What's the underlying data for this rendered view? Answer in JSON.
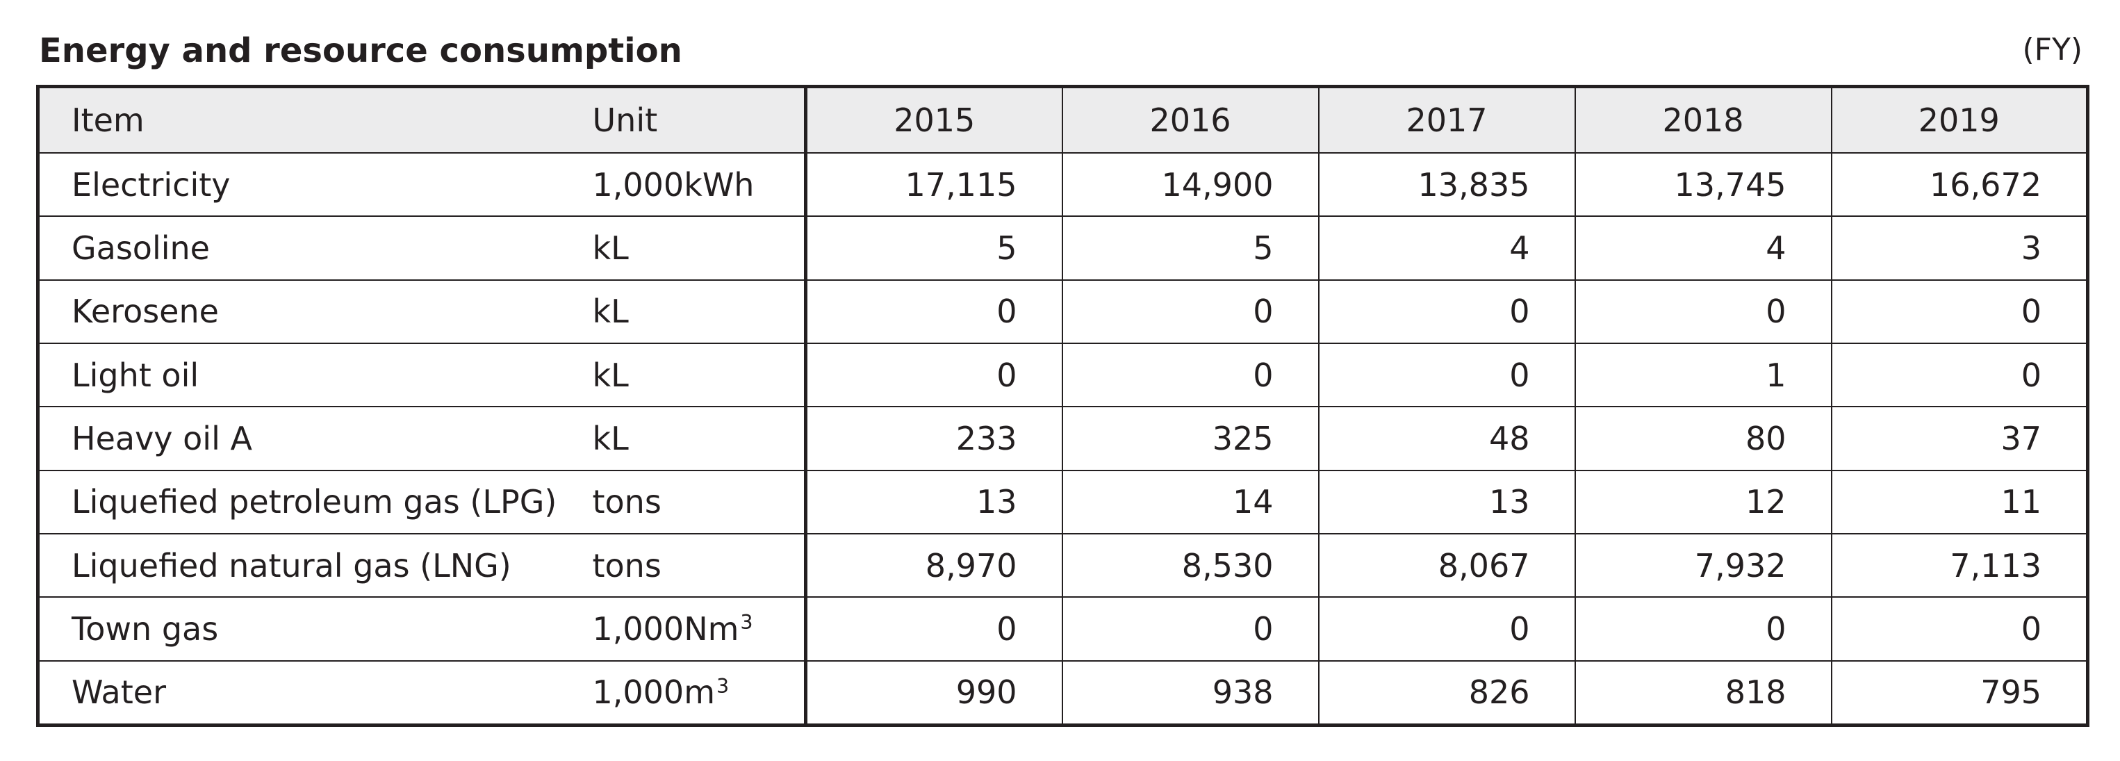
{
  "header": {
    "title": "Energy and resource consumption",
    "period": "(FY)"
  },
  "table": {
    "columns": {
      "item": "Item",
      "unit": "Unit",
      "years": [
        "2015",
        "2016",
        "2017",
        "2018",
        "2019"
      ]
    },
    "rows": [
      {
        "item": "Electricity",
        "unit": "1,000kWh",
        "unit_sup": "",
        "values": [
          "17,115",
          "14,900",
          "13,835",
          "13,745",
          "16,672"
        ]
      },
      {
        "item": "Gasoline",
        "unit": "kL",
        "unit_sup": "",
        "values": [
          "5",
          "5",
          "4",
          "4",
          "3"
        ]
      },
      {
        "item": "Kerosene",
        "unit": "kL",
        "unit_sup": "",
        "values": [
          "0",
          "0",
          "0",
          "0",
          "0"
        ]
      },
      {
        "item": "Light oil",
        "unit": "kL",
        "unit_sup": "",
        "values": [
          "0",
          "0",
          "0",
          "1",
          "0"
        ]
      },
      {
        "item": "Heavy oil A",
        "unit": "kL",
        "unit_sup": "",
        "values": [
          "233",
          "325",
          "48",
          "80",
          "37"
        ]
      },
      {
        "item": "Liquefied petroleum gas (LPG)",
        "unit": "tons",
        "unit_sup": "",
        "values": [
          "13",
          "14",
          "13",
          "12",
          "11"
        ]
      },
      {
        "item": "Liquefied natural gas (LNG)",
        "unit": "tons",
        "unit_sup": "",
        "values": [
          "8,970",
          "8,530",
          "8,067",
          "7,932",
          "7,113"
        ]
      },
      {
        "item": "Town gas",
        "unit": "1,000Nm",
        "unit_sup": "3",
        "values": [
          "0",
          "0",
          "0",
          "0",
          "0"
        ]
      },
      {
        "item": "Water",
        "unit": "1,000m",
        "unit_sup": "3",
        "values": [
          "990",
          "938",
          "826",
          "818",
          "795"
        ]
      }
    ]
  }
}
